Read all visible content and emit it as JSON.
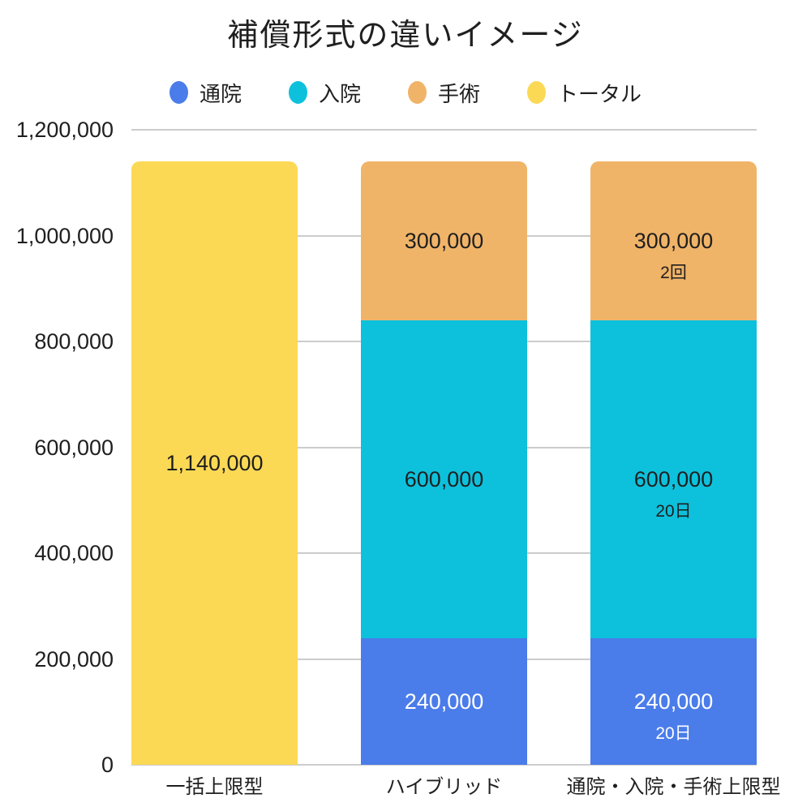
{
  "page": {
    "background": "#ffffff",
    "text_color": "#1f1f1f"
  },
  "chart_data": {
    "type": "bar",
    "variant": "stacked",
    "title": "補償形式の違いイメージ",
    "xlabel": "",
    "ylabel": "",
    "ylim": [
      0,
      1200000
    ],
    "grid": true,
    "grid_color": "#cccccc",
    "legend_position": "top",
    "y_ticks": [
      {
        "value": 1200000,
        "label": "1,200,000"
      },
      {
        "value": 1000000,
        "label": "1,000,000"
      },
      {
        "value": 800000,
        "label": "800,000"
      },
      {
        "value": 600000,
        "label": "600,000"
      },
      {
        "value": 400000,
        "label": "400,000"
      },
      {
        "value": 200000,
        "label": "200,000"
      },
      {
        "value": 0,
        "label": "0"
      }
    ],
    "series": [
      {
        "name": "通院",
        "color": "#4a7cea",
        "label_color": "#ffffff"
      },
      {
        "name": "入院",
        "color": "#0dc1dc",
        "label_color": "#1f1f1f"
      },
      {
        "name": "手術",
        "color": "#f0b468",
        "label_color": "#1f1f1f"
      },
      {
        "name": "トータル",
        "color": "#fcd955",
        "label_color": "#1f1f1f"
      }
    ],
    "categories": [
      "一括上限型",
      "ハイブリッド",
      "通院・入院・手術上限型"
    ],
    "bars": [
      {
        "category": "一括上限型",
        "segments": [
          {
            "series": "トータル",
            "value": 1140000,
            "label": "1,140,000",
            "sub_label": ""
          }
        ]
      },
      {
        "category": "ハイブリッド",
        "segments": [
          {
            "series": "通院",
            "value": 240000,
            "label": "240,000",
            "sub_label": ""
          },
          {
            "series": "入院",
            "value": 600000,
            "label": "600,000",
            "sub_label": ""
          },
          {
            "series": "手術",
            "value": 300000,
            "label": "300,000",
            "sub_label": ""
          }
        ]
      },
      {
        "category": "通院・入院・手術上限型",
        "segments": [
          {
            "series": "通院",
            "value": 240000,
            "label": "240,000",
            "sub_label": "20日"
          },
          {
            "series": "入院",
            "value": 600000,
            "label": "600,000",
            "sub_label": "20日"
          },
          {
            "series": "手術",
            "value": 300000,
            "label": "300,000",
            "sub_label": "2回"
          }
        ]
      }
    ]
  }
}
